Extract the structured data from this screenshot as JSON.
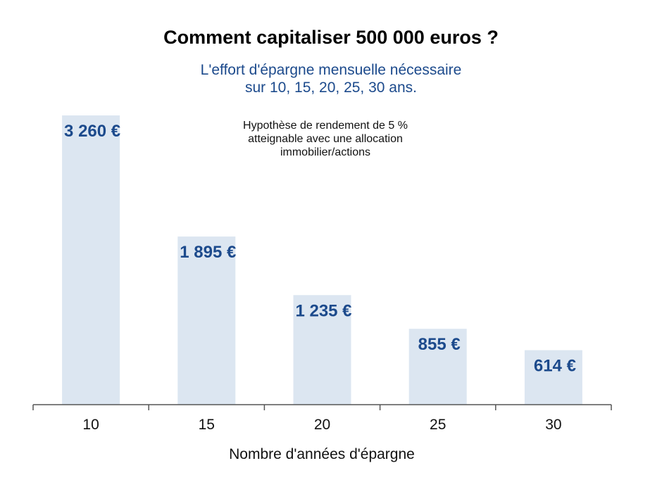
{
  "chart_data": {
    "type": "bar",
    "title": "Comment capitaliser 500 000 euros ?",
    "subtitle_lines": [
      "L'effort d'épargne mensuelle nécessaire",
      "sur 10, 15, 20, 25, 30 ans."
    ],
    "annotation_lines": [
      "Hypothèse de rendement de 5 %",
      "atteignable avec une allocation",
      "immobilier/actions"
    ],
    "xlabel": "Nombre d'années d'épargne",
    "ylabel": "",
    "categories": [
      "10",
      "15",
      "20",
      "25",
      "30"
    ],
    "values": [
      3260,
      1895,
      1235,
      855,
      614
    ],
    "data_labels": [
      "3 260 €",
      "1 895 €",
      "1 235 €",
      "855 €",
      "614 €"
    ],
    "ylim": [
      0,
      3260
    ],
    "grid": false,
    "legend": "none",
    "colors": {
      "bar": "#dce6f1",
      "data_label": "#1c4a8c",
      "subtitle": "#1c4a8c",
      "axis": "#555555"
    }
  }
}
